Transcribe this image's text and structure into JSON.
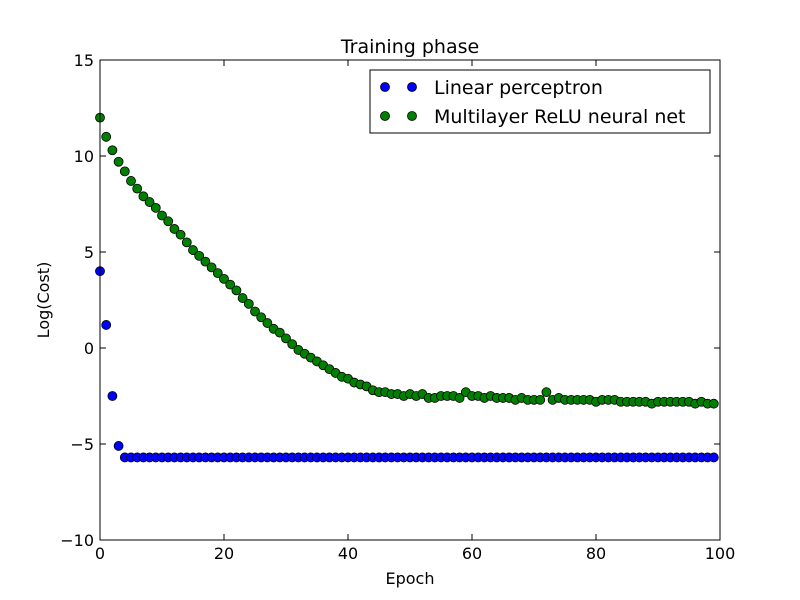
{
  "chart_data": {
    "type": "scatter",
    "title": "Training phase",
    "xlabel": "Epoch",
    "ylabel": "Log(Cost)",
    "xlim": [
      0,
      100
    ],
    "ylim": [
      -10,
      15
    ],
    "xticks": [
      0,
      20,
      40,
      60,
      80,
      100
    ],
    "yticks": [
      -10,
      -5,
      0,
      5,
      10,
      15
    ],
    "xtick_labels": [
      "0",
      "20",
      "40",
      "60",
      "80",
      "100"
    ],
    "ytick_labels": [
      "−10",
      "−5",
      "0",
      "5",
      "10",
      "15"
    ],
    "grid": false,
    "legend_position": "top-right",
    "series": [
      {
        "name": "Linear perceptron",
        "color": "#0000ff",
        "x": [
          0,
          1,
          2,
          3,
          4,
          5,
          6,
          7,
          8,
          9,
          10,
          11,
          12,
          13,
          14,
          15,
          16,
          17,
          18,
          19,
          20,
          21,
          22,
          23,
          24,
          25,
          26,
          27,
          28,
          29,
          30,
          31,
          32,
          33,
          34,
          35,
          36,
          37,
          38,
          39,
          40,
          41,
          42,
          43,
          44,
          45,
          46,
          47,
          48,
          49,
          50,
          51,
          52,
          53,
          54,
          55,
          56,
          57,
          58,
          59,
          60,
          61,
          62,
          63,
          64,
          65,
          66,
          67,
          68,
          69,
          70,
          71,
          72,
          73,
          74,
          75,
          76,
          77,
          78,
          79,
          80,
          81,
          82,
          83,
          84,
          85,
          86,
          87,
          88,
          89,
          90,
          91,
          92,
          93,
          94,
          95,
          96,
          97,
          98,
          99
        ],
        "y": [
          4.0,
          1.2,
          -2.5,
          -5.1,
          -5.7,
          -5.7,
          -5.7,
          -5.7,
          -5.7,
          -5.7,
          -5.7,
          -5.7,
          -5.7,
          -5.7,
          -5.7,
          -5.7,
          -5.7,
          -5.7,
          -5.7,
          -5.7,
          -5.7,
          -5.7,
          -5.7,
          -5.7,
          -5.7,
          -5.7,
          -5.7,
          -5.7,
          -5.7,
          -5.7,
          -5.7,
          -5.7,
          -5.7,
          -5.7,
          -5.7,
          -5.7,
          -5.7,
          -5.7,
          -5.7,
          -5.7,
          -5.7,
          -5.7,
          -5.7,
          -5.7,
          -5.7,
          -5.7,
          -5.7,
          -5.7,
          -5.7,
          -5.7,
          -5.7,
          -5.7,
          -5.7,
          -5.7,
          -5.7,
          -5.7,
          -5.7,
          -5.7,
          -5.7,
          -5.7,
          -5.7,
          -5.7,
          -5.7,
          -5.7,
          -5.7,
          -5.7,
          -5.7,
          -5.7,
          -5.7,
          -5.7,
          -5.7,
          -5.7,
          -5.7,
          -5.7,
          -5.7,
          -5.7,
          -5.7,
          -5.7,
          -5.7,
          -5.7,
          -5.7,
          -5.7,
          -5.7,
          -5.7,
          -5.7,
          -5.7,
          -5.7,
          -5.7,
          -5.7,
          -5.7,
          -5.7,
          -5.7,
          -5.7,
          -5.7,
          -5.7,
          -5.7,
          -5.7,
          -5.7,
          -5.7,
          -5.7
        ]
      },
      {
        "name": "Multilayer ReLU neural net",
        "color": "#008000",
        "x": [
          0,
          1,
          2,
          3,
          4,
          5,
          6,
          7,
          8,
          9,
          10,
          11,
          12,
          13,
          14,
          15,
          16,
          17,
          18,
          19,
          20,
          21,
          22,
          23,
          24,
          25,
          26,
          27,
          28,
          29,
          30,
          31,
          32,
          33,
          34,
          35,
          36,
          37,
          38,
          39,
          40,
          41,
          42,
          43,
          44,
          45,
          46,
          47,
          48,
          49,
          50,
          51,
          52,
          53,
          54,
          55,
          56,
          57,
          58,
          59,
          60,
          61,
          62,
          63,
          64,
          65,
          66,
          67,
          68,
          69,
          70,
          71,
          72,
          73,
          74,
          75,
          76,
          77,
          78,
          79,
          80,
          81,
          82,
          83,
          84,
          85,
          86,
          87,
          88,
          89,
          90,
          91,
          92,
          93,
          94,
          95,
          96,
          97,
          98,
          99
        ],
        "y": [
          12.0,
          11.0,
          10.3,
          9.7,
          9.2,
          8.7,
          8.3,
          7.9,
          7.6,
          7.3,
          6.9,
          6.6,
          6.2,
          5.9,
          5.5,
          5.1,
          4.8,
          4.5,
          4.2,
          3.9,
          3.6,
          3.3,
          3.0,
          2.6,
          2.3,
          1.9,
          1.6,
          1.3,
          1.0,
          0.8,
          0.5,
          0.2,
          -0.1,
          -0.3,
          -0.5,
          -0.7,
          -0.9,
          -1.1,
          -1.3,
          -1.5,
          -1.6,
          -1.8,
          -1.9,
          -2.0,
          -2.2,
          -2.3,
          -2.3,
          -2.4,
          -2.4,
          -2.5,
          -2.4,
          -2.5,
          -2.4,
          -2.6,
          -2.6,
          -2.5,
          -2.5,
          -2.5,
          -2.6,
          -2.3,
          -2.5,
          -2.5,
          -2.6,
          -2.5,
          -2.6,
          -2.6,
          -2.6,
          -2.7,
          -2.6,
          -2.7,
          -2.7,
          -2.7,
          -2.3,
          -2.7,
          -2.6,
          -2.7,
          -2.7,
          -2.7,
          -2.7,
          -2.7,
          -2.8,
          -2.7,
          -2.7,
          -2.7,
          -2.8,
          -2.8,
          -2.8,
          -2.8,
          -2.8,
          -2.9,
          -2.8,
          -2.8,
          -2.8,
          -2.8,
          -2.8,
          -2.8,
          -2.9,
          -2.8,
          -2.9,
          -2.9
        ]
      }
    ]
  }
}
